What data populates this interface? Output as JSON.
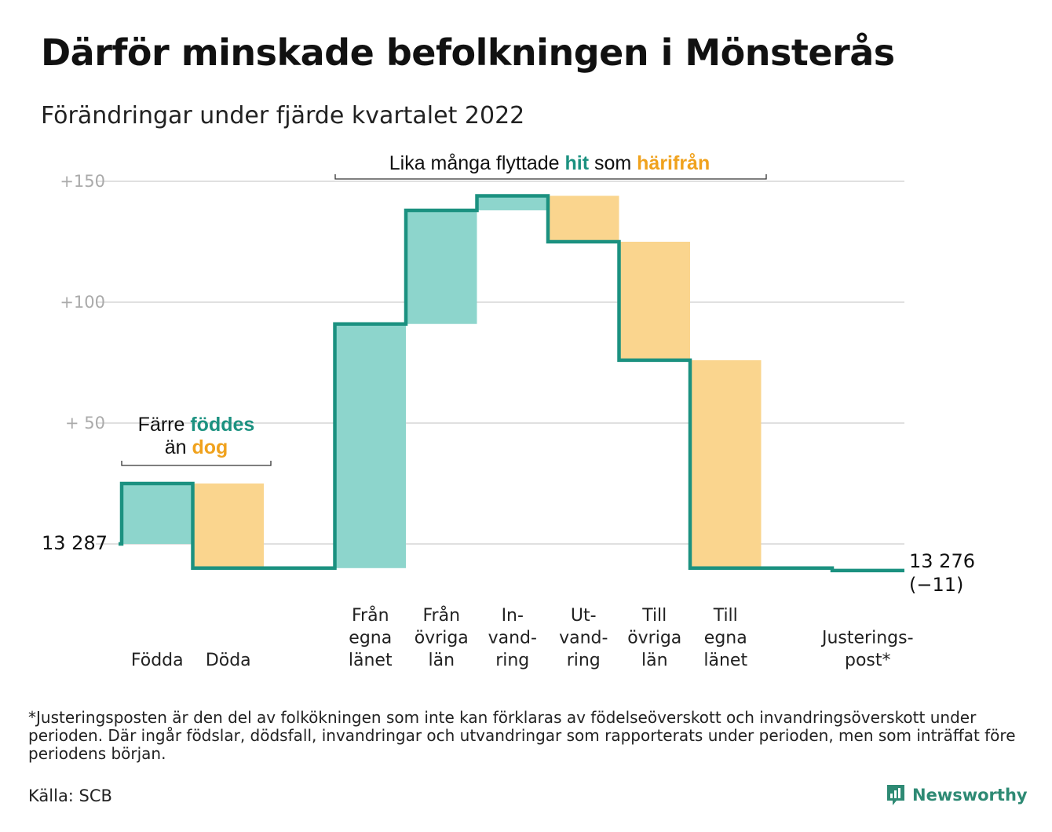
{
  "title": "Därför minskade befolkningen i Mönsterås",
  "subtitle": "Förändringar under fjärde kvartalet 2022",
  "colors": {
    "inflow": "#8dd5cc",
    "outflow": "#fad58e",
    "line": "#1b9180",
    "inflow_text": "#1b9180",
    "outflow_text": "#f0a21d",
    "grid": "#e0e0e0"
  },
  "annotations": {
    "births_line1_prefix": "Färre ",
    "births_line1_hl": "föddes",
    "births_line2_prefix": "än ",
    "births_line2_hl": "dog",
    "moves_prefix": "Lika många flyttade ",
    "moves_hl1": "hit",
    "moves_mid": " som ",
    "moves_hl2": "härifrån"
  },
  "chart_data": {
    "type": "waterfall",
    "start_label": "13 287",
    "end_label_line1": "13 276",
    "end_label_line2": "(−11)",
    "y_ticks": [
      {
        "value": 150,
        "label": "+150"
      },
      {
        "value": 100,
        "label": "+100"
      },
      {
        "value": 50,
        "label": "+ 50"
      }
    ],
    "ylim": [
      -22,
      155
    ],
    "grid": true,
    "steps": [
      {
        "lines": [
          "Födda"
        ],
        "delta": 25,
        "kind": "inflow"
      },
      {
        "lines": [
          "Döda"
        ],
        "delta": -35,
        "kind": "outflow"
      },
      {
        "lines": [],
        "delta": 0,
        "kind": "none"
      },
      {
        "lines": [
          "Från",
          "egna",
          "länet"
        ],
        "delta": 101,
        "kind": "inflow"
      },
      {
        "lines": [
          "Från",
          "övriga",
          "län"
        ],
        "delta": 47,
        "kind": "inflow"
      },
      {
        "lines": [
          "In-",
          "vand-",
          "ring"
        ],
        "delta": 6,
        "kind": "inflow"
      },
      {
        "lines": [
          "Ut-",
          "vand-",
          "ring"
        ],
        "delta": -19,
        "kind": "outflow"
      },
      {
        "lines": [
          "Till",
          "övriga",
          "län"
        ],
        "delta": -49,
        "kind": "outflow"
      },
      {
        "lines": [
          "Till",
          "egna",
          "länet"
        ],
        "delta": -86,
        "kind": "outflow"
      },
      {
        "lines": [],
        "delta": 0,
        "kind": "none"
      },
      {
        "lines": [
          "Justerings-",
          "post*"
        ],
        "delta": -1,
        "kind": "outflow"
      }
    ]
  },
  "footnote": "*Justeringsposten är den del av folkökningen som inte kan förklaras av födelseöverskott och invandringsöverskott under perioden. Där ingår födslar, dödsfall, invandringar och utvandringar som rapporterats under perioden, men som inträffat före periodens början.",
  "source": "Källa: SCB",
  "brand": "Newsworthy"
}
